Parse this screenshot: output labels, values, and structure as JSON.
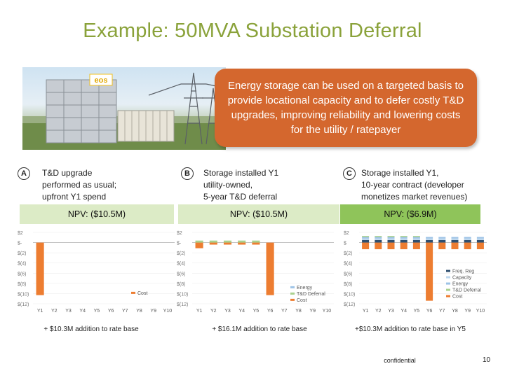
{
  "title": "Example: 50MVA Substation Deferral",
  "callout": "Energy storage can be used on a targeted basis to provide locational capacity and to defer costly T&D upgrades, improving reliability and lowering costs for the utility / ratepayer",
  "photo": {
    "logo_text": "eos"
  },
  "colors": {
    "title": "#8aa23a",
    "callout": "#d4672e",
    "npv_bg": "#dcebc6",
    "npv_bg_strong": "#8fc45a",
    "cost": "#ed7d31",
    "energy": "#9dc3e6",
    "td_deferral": "#a9d18e",
    "capacity": "#bdd7ee",
    "freq_reg": "#2f4f6f"
  },
  "columns": [
    {
      "badge": "A",
      "lines": [
        "T&D upgrade",
        "performed as usual;",
        "upfront Y1 spend"
      ],
      "npv": "NPV: ($10.5M)",
      "footnote": "+ $10.3M addition to rate base"
    },
    {
      "badge": "B",
      "lines": [
        "Storage installed Y1",
        "utility-owned,",
        "5-year T&D deferral"
      ],
      "npv": "NPV: ($10.5M)",
      "footnote": "+ $16.1M addition to rate base"
    },
    {
      "badge": "C",
      "lines": [
        "Storage installed Y1,",
        "10-year contract (developer",
        "monetizes market revenues)"
      ],
      "npv": "NPV: ($6.9M)",
      "footnote": "+$10.3M addition to rate base in Y5"
    }
  ],
  "chart_data": [
    {
      "type": "bar",
      "categories": [
        "Y1",
        "Y2",
        "Y3",
        "Y4",
        "Y5",
        "Y6",
        "Y7",
        "Y8",
        "Y9",
        "Y10"
      ],
      "y_ticks": [
        "$2",
        "$-",
        "$(2)",
        "$(4)",
        "$(6)",
        "$(8)",
        "$(10)",
        "$(12)"
      ],
      "ylim": [
        -12,
        2
      ],
      "series": [
        {
          "name": "Cost",
          "values": [
            -10.3,
            0,
            0,
            0,
            0,
            0,
            0,
            0,
            0,
            0
          ]
        }
      ]
    },
    {
      "type": "bar",
      "categories": [
        "Y1",
        "Y2",
        "Y3",
        "Y4",
        "Y5",
        "Y6",
        "Y7",
        "Y8",
        "Y9",
        "Y10"
      ],
      "y_ticks": [
        "$2",
        "$-",
        "$(2)",
        "$(4)",
        "$(6)",
        "$(8)",
        "$(10)",
        "$(12)"
      ],
      "ylim": [
        -12,
        2
      ],
      "series": [
        {
          "name": "Energy",
          "values": [
            0,
            0,
            0,
            0,
            0,
            0,
            0,
            0,
            0,
            0
          ]
        },
        {
          "name": "T&D Deferral",
          "values": [
            0.4,
            0.4,
            0.4,
            0.4,
            0.4,
            0,
            0,
            0,
            0,
            0
          ]
        },
        {
          "name": "Cost",
          "values": [
            -1.1,
            -0.4,
            -0.4,
            -0.4,
            -0.4,
            -10.3,
            0,
            0,
            0,
            0
          ]
        }
      ]
    },
    {
      "type": "bar",
      "categories": [
        "Y1",
        "Y2",
        "Y3",
        "Y4",
        "Y5",
        "Y6",
        "Y7",
        "Y8",
        "Y9",
        "Y10"
      ],
      "y_ticks": [
        "$2",
        "$",
        "$(2)",
        "$(4)",
        "$(6)",
        "$(8)",
        "$(10)",
        "$(12)"
      ],
      "ylim": [
        -12,
        2
      ],
      "series": [
        {
          "name": "Freq. Reg",
          "values": [
            0.5,
            0.5,
            0.5,
            0.5,
            0.5,
            0.5,
            0.5,
            0.5,
            0.5,
            0.5
          ]
        },
        {
          "name": "Capacity",
          "values": [
            0.3,
            0.3,
            0.3,
            0.3,
            0.3,
            0.3,
            0.3,
            0.3,
            0.3,
            0.3
          ]
        },
        {
          "name": "Energy",
          "values": [
            0.3,
            0.3,
            0.3,
            0.3,
            0.3,
            0.3,
            0.3,
            0.3,
            0.3,
            0.3
          ]
        },
        {
          "name": "T&D Deferral",
          "values": [
            0.2,
            0.2,
            0.2,
            0.2,
            0.2,
            0,
            0,
            0,
            0,
            0
          ]
        },
        {
          "name": "Cost",
          "values": [
            -1.3,
            -1.3,
            -1.3,
            -1.3,
            -1.3,
            -11.4,
            -1.3,
            -1.3,
            -1.3,
            -1.3
          ]
        }
      ]
    }
  ],
  "footer": {
    "confidential": "confidential",
    "page": "10"
  }
}
